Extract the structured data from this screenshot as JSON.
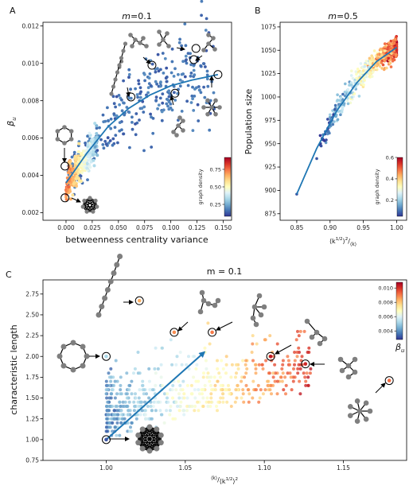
{
  "chart_data": [
    {
      "panel": "A",
      "type": "scatter",
      "title_var": "m",
      "title_val": "=0.1",
      "xlabel": "betweenness centrality variance",
      "ylabel": "β",
      "ylabel_sub": "u",
      "xlim": [
        -0.022,
        0.158
      ],
      "ylim": [
        0.0016,
        0.0122
      ],
      "xticks": [
        "0.000",
        "0.025",
        "0.050",
        "0.075",
        "0.100",
        "0.125",
        "0.150"
      ],
      "yticks": [
        "0.002",
        "0.004",
        "0.006",
        "0.008",
        "0.010",
        "0.012"
      ],
      "colorbar": {
        "label": "graph density",
        "ticks": [
          "0.25",
          "0.50",
          "0.75"
        ],
        "range": [
          0.08,
          0.92
        ]
      },
      "fit_curve": {
        "x": [
          0.0,
          0.02,
          0.04,
          0.06,
          0.08,
          0.1,
          0.12,
          0.145
        ],
        "y": [
          0.0036,
          0.0052,
          0.0066,
          0.0076,
          0.0083,
          0.0088,
          0.0091,
          0.0094
        ]
      },
      "highlighted_points": [
        {
          "x": -0.001,
          "y": 0.0028
        },
        {
          "x": -0.001,
          "y": 0.0045
        },
        {
          "x": 0.062,
          "y": 0.0082
        },
        {
          "x": 0.082,
          "y": 0.0099
        },
        {
          "x": 0.104,
          "y": 0.0084
        },
        {
          "x": 0.122,
          "y": 0.0102
        },
        {
          "x": 0.124,
          "y": 0.0108
        },
        {
          "x": 0.145,
          "y": 0.0094
        }
      ],
      "series_note": "dense cluster near x=0..0.03 colored by graph density"
    },
    {
      "panel": "B",
      "type": "scatter",
      "title_var": "m",
      "title_val": "=0.5",
      "xlabel": "⟨k^{1/2}⟩²/⟨k⟩",
      "ylabel": "Population size",
      "xlim": [
        0.825,
        1.015
      ],
      "ylim": [
        868,
        1080
      ],
      "xticks": [
        "0.85",
        "0.90",
        "0.95",
        "1.00"
      ],
      "yticks": [
        "875",
        "900",
        "925",
        "950",
        "975",
        "1000",
        "1025",
        "1050",
        "1075"
      ],
      "colorbar": {
        "label": "graph density",
        "ticks": [
          "0.2",
          "0.4",
          "0.6"
        ],
        "range": [
          0.05,
          0.6
        ]
      },
      "fit_curve": {
        "x": [
          0.85,
          0.88,
          0.91,
          0.94,
          0.97,
          1.0
        ],
        "y": [
          896,
          945,
          985,
          1015,
          1038,
          1053
        ]
      }
    },
    {
      "panel": "C",
      "type": "scatter",
      "title": "m = 0.1",
      "xlabel": "⟨k⟩/⟨k^{1/2}⟩²",
      "ylabel": "characteristic length",
      "xlim": [
        0.96,
        1.19
      ],
      "ylim": [
        0.75,
        2.92
      ],
      "xticks": [
        "1.00",
        "1.05",
        "1.10",
        "1.15"
      ],
      "yticks": [
        "0.75",
        "1.00",
        "1.25",
        "1.50",
        "1.75",
        "2.00",
        "2.25",
        "2.50",
        "2.75"
      ],
      "colorbar": {
        "label": "β",
        "label_sub": "u",
        "ticks": [
          "0.004",
          "0.006",
          "0.008",
          "0.010"
        ],
        "range": [
          0.0028,
          0.0108
        ]
      },
      "trend_arrow": {
        "from": [
          1.0,
          1.0
        ],
        "to": [
          1.062,
          2.05
        ]
      },
      "highlighted_points": [
        {
          "x": 1.0,
          "y": 1.0
        },
        {
          "x": 1.0,
          "y": 2.0
        },
        {
          "x": 1.021,
          "y": 2.67
        },
        {
          "x": 1.043,
          "y": 2.29
        },
        {
          "x": 1.067,
          "y": 2.29
        },
        {
          "x": 1.104,
          "y": 2.0
        },
        {
          "x": 1.126,
          "y": 1.91
        },
        {
          "x": 1.179,
          "y": 1.71
        }
      ]
    }
  ],
  "labels": {
    "panel_a": "A",
    "panel_b": "B",
    "panel_c": "C"
  },
  "colors": {
    "curve": "#1f77b4",
    "cmap": [
      "#313695",
      "#4575b4",
      "#74add1",
      "#abd9e9",
      "#e0f3f8",
      "#ffffbf",
      "#fee090",
      "#fdae61",
      "#f46d43",
      "#d73027",
      "#a50026"
    ],
    "graph_gray": "#7f7f7f"
  }
}
